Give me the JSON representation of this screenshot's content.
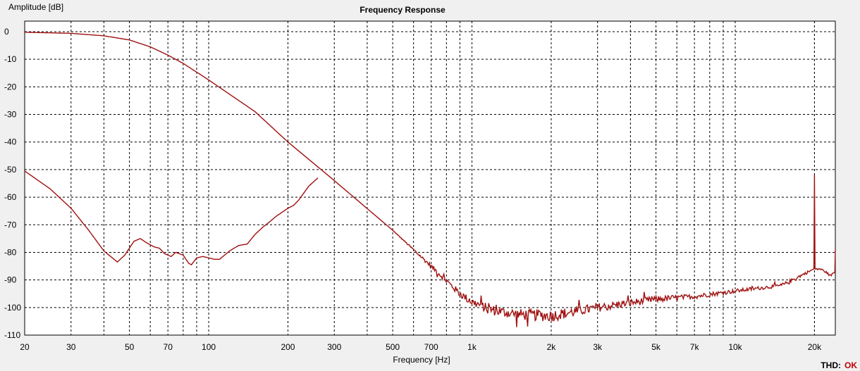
{
  "chart_data": {
    "type": "line",
    "title": "Frequency Response",
    "xlabel": "Frequency [Hz]",
    "ylabel": "Amplitude [dB]",
    "x_scale": "log",
    "xlim": [
      20,
      24000
    ],
    "ylim": [
      -110,
      2
    ],
    "grid": true,
    "x_tick_labels": [
      {
        "v": 20,
        "t": "20"
      },
      {
        "v": 30,
        "t": "30"
      },
      {
        "v": 50,
        "t": "50"
      },
      {
        "v": 70,
        "t": "70"
      },
      {
        "v": 100,
        "t": "100"
      },
      {
        "v": 200,
        "t": "200"
      },
      {
        "v": 300,
        "t": "300"
      },
      {
        "v": 500,
        "t": "500"
      },
      {
        "v": 700,
        "t": "700"
      },
      {
        "v": 1000,
        "t": "1k"
      },
      {
        "v": 2000,
        "t": "2k"
      },
      {
        "v": 3000,
        "t": "3k"
      },
      {
        "v": 5000,
        "t": "5k"
      },
      {
        "v": 7000,
        "t": "7k"
      },
      {
        "v": 10000,
        "t": "10k"
      },
      {
        "v": 20000,
        "t": "20k"
      }
    ],
    "y_ticks": [
      0,
      -10,
      -20,
      -30,
      -40,
      -50,
      -60,
      -70,
      -80,
      -90,
      -100,
      -110
    ],
    "series": [
      {
        "color": "#a01010",
        "x": [
          20,
          30,
          40,
          50,
          60,
          70,
          80,
          100,
          150,
          200,
          300,
          500,
          700,
          900,
          1000,
          1200,
          1500,
          2000,
          3000,
          5000,
          7000,
          10000,
          15000,
          19000,
          19900,
          20000,
          20100,
          21000,
          22000,
          23000,
          23900,
          24000
        ],
        "y": [
          -0.2,
          -0.6,
          -1.5,
          -3,
          -5.5,
          -8.5,
          -11.5,
          -17.5,
          -29,
          -40,
          -54,
          -72,
          -85,
          -95,
          -98,
          -101,
          -102.5,
          -103,
          -100,
          -97,
          -96,
          -94,
          -92,
          -87,
          -86,
          -52,
          -86,
          -86,
          -87,
          -88.5,
          -87,
          -79
        ],
        "noise": [
          0,
          0,
          0,
          0,
          0,
          0,
          0,
          0,
          0,
          0,
          0,
          0,
          0.8,
          1.3,
          1.5,
          1.8,
          2.0,
          2.2,
          1.6,
          1.2,
          0.9,
          0.7,
          0.6,
          0.5,
          0,
          0,
          0,
          0.4,
          0.4,
          0.4,
          0.2,
          0
        ]
      },
      {
        "color": "#a01010",
        "x": [
          20,
          25,
          30,
          35,
          40,
          45,
          48,
          52,
          55,
          58,
          62,
          65,
          68,
          72,
          75,
          80,
          84,
          86,
          90,
          95,
          100,
          105,
          110,
          120,
          130,
          140,
          150,
          160,
          170,
          180,
          200,
          210,
          220,
          240,
          260
        ],
        "y": [
          -50.5,
          -57,
          -64,
          -72,
          -79.5,
          -83.5,
          -81,
          -76,
          -75,
          -76.5,
          -78,
          -78.5,
          -80.5,
          -81.5,
          -80,
          -81,
          -84,
          -84.5,
          -82,
          -81.5,
          -82,
          -82.5,
          -82.5,
          -79.5,
          -77.5,
          -77,
          -73.5,
          -71,
          -69,
          -67,
          -64,
          -63,
          -61,
          -56,
          -53
        ]
      }
    ]
  },
  "status": {
    "thd_label": "THD:",
    "thd_value": "OK"
  }
}
